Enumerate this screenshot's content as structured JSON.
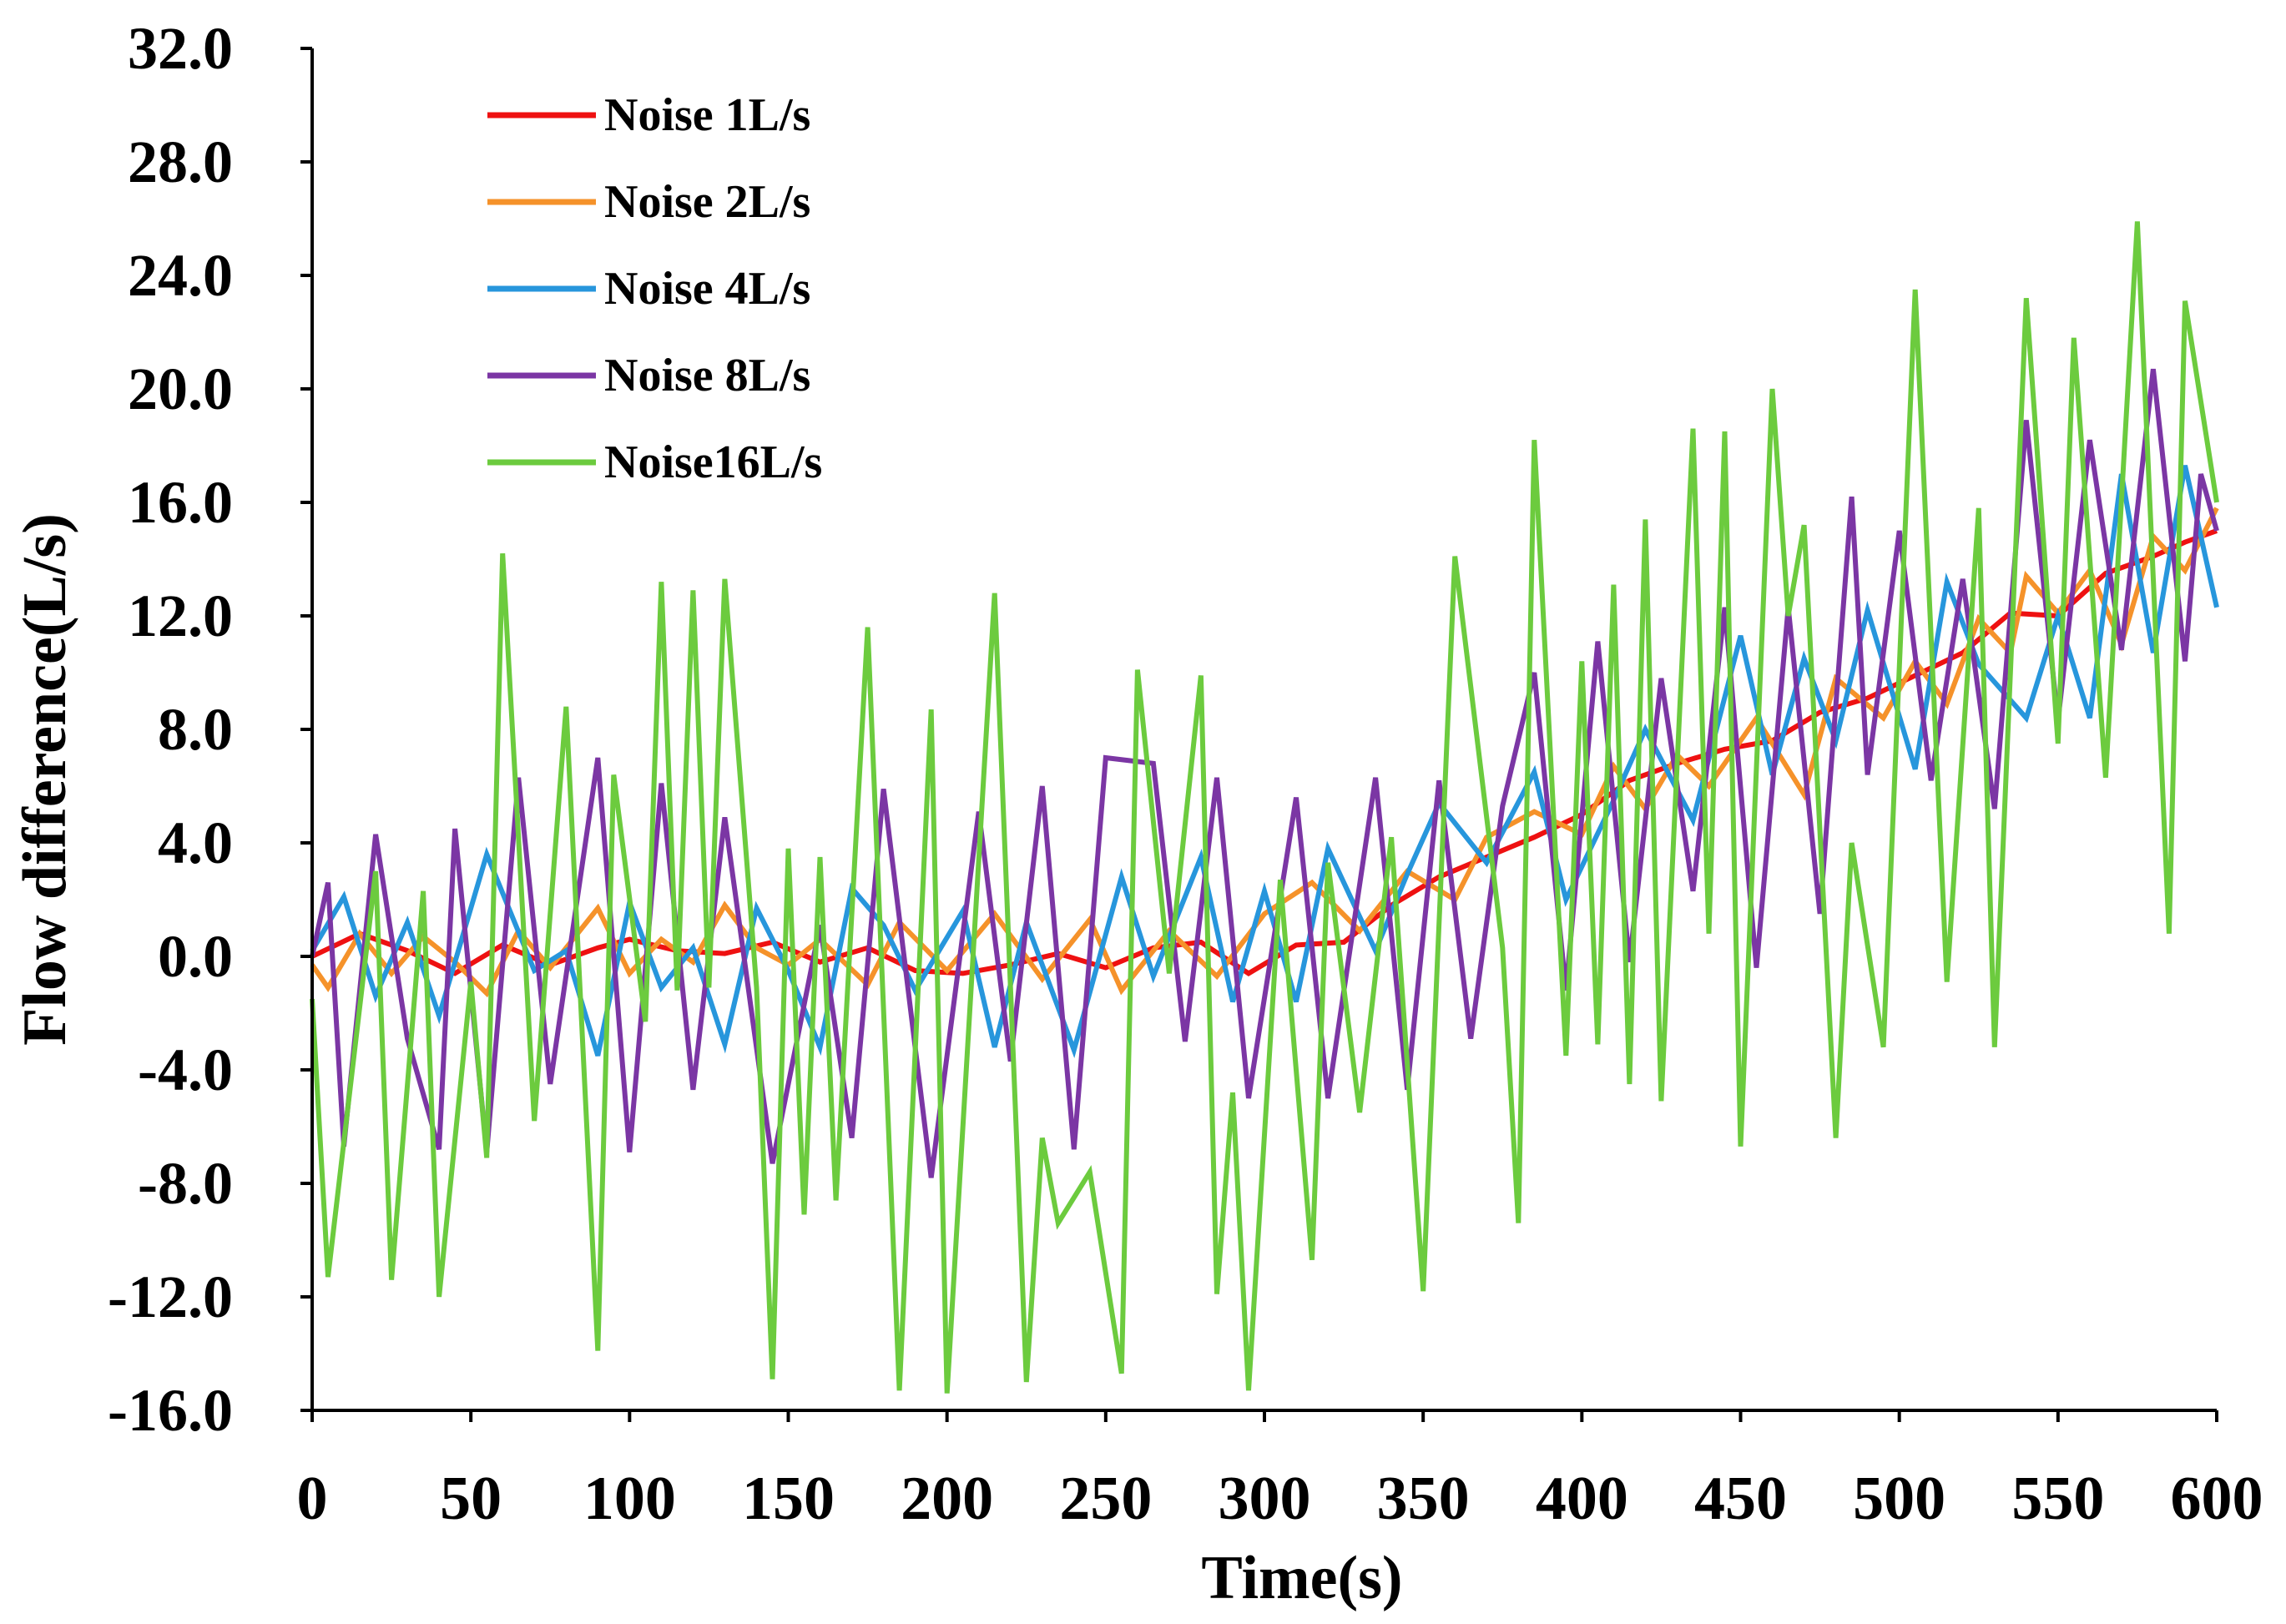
{
  "chart_data": {
    "type": "line",
    "title": "",
    "xlabel": "Time(s)",
    "ylabel": "Flow difference(L/s)",
    "xlim": [
      0,
      600
    ],
    "ylim": [
      -16,
      32
    ],
    "xticks": [
      0,
      50,
      100,
      150,
      200,
      250,
      300,
      350,
      400,
      450,
      500,
      550,
      600
    ],
    "xtick_labels": [
      "0",
      "50",
      "100",
      "150",
      "200",
      "250",
      "300",
      "350",
      "400",
      "450",
      "500",
      "550",
      "600"
    ],
    "yticks": [
      -16,
      -12,
      -8,
      -4,
      0,
      4,
      8,
      12,
      16,
      20,
      24,
      28,
      32
    ],
    "ytick_labels": [
      "-16.0",
      "-12.0",
      "-8.0",
      "-4.0",
      "0.0",
      "4.0",
      "8.0",
      "12.0",
      "16.0",
      "20.0",
      "24.0",
      "28.0",
      "32.0"
    ],
    "grid": false,
    "legend_position": "top-left",
    "series": [
      {
        "name": "Noise 1L/s",
        "color": "#ee1111",
        "points": [
          [
            0,
            0.0
          ],
          [
            15,
            0.8
          ],
          [
            30,
            0.2
          ],
          [
            45,
            -0.6
          ],
          [
            60,
            0.4
          ],
          [
            75,
            -0.3
          ],
          [
            90,
            0.3
          ],
          [
            100,
            0.6
          ],
          [
            115,
            0.2
          ],
          [
            130,
            0.1
          ],
          [
            145,
            0.5
          ],
          [
            160,
            -0.2
          ],
          [
            175,
            0.3
          ],
          [
            190,
            -0.5
          ],
          [
            205,
            -0.6
          ],
          [
            220,
            -0.3
          ],
          [
            235,
            0.1
          ],
          [
            250,
            -0.4
          ],
          [
            265,
            0.3
          ],
          [
            280,
            0.5
          ],
          [
            295,
            -0.6
          ],
          [
            310,
            0.4
          ],
          [
            325,
            0.5
          ],
          [
            340,
            1.8
          ],
          [
            355,
            2.8
          ],
          [
            370,
            3.5
          ],
          [
            385,
            4.2
          ],
          [
            400,
            5.0
          ],
          [
            415,
            6.2
          ],
          [
            430,
            6.8
          ],
          [
            445,
            7.3
          ],
          [
            460,
            7.6
          ],
          [
            475,
            8.6
          ],
          [
            490,
            9.1
          ],
          [
            505,
            9.9
          ],
          [
            520,
            10.7
          ],
          [
            535,
            12.1
          ],
          [
            550,
            12.0
          ],
          [
            565,
            13.5
          ],
          [
            580,
            14.1
          ],
          [
            590,
            14.6
          ],
          [
            600,
            15.0
          ]
        ]
      },
      {
        "name": "Noise 2L/s",
        "color": "#f5922a",
        "points": [
          [
            0,
            -0.3
          ],
          [
            5,
            -1.1
          ],
          [
            15,
            0.8
          ],
          [
            25,
            -0.6
          ],
          [
            35,
            0.7
          ],
          [
            45,
            -0.2
          ],
          [
            55,
            -1.3
          ],
          [
            65,
            0.9
          ],
          [
            75,
            -0.4
          ],
          [
            90,
            1.7
          ],
          [
            100,
            -0.6
          ],
          [
            110,
            0.6
          ],
          [
            120,
            -0.2
          ],
          [
            130,
            1.8
          ],
          [
            140,
            0.3
          ],
          [
            150,
            -0.3
          ],
          [
            160,
            0.6
          ],
          [
            175,
            -1.0
          ],
          [
            185,
            1.2
          ],
          [
            200,
            -0.5
          ],
          [
            215,
            1.5
          ],
          [
            230,
            -0.8
          ],
          [
            245,
            1.3
          ],
          [
            255,
            -1.2
          ],
          [
            270,
            0.9
          ],
          [
            285,
            -0.7
          ],
          [
            300,
            1.5
          ],
          [
            315,
            2.6
          ],
          [
            330,
            0.9
          ],
          [
            345,
            3.0
          ],
          [
            360,
            2.0
          ],
          [
            370,
            4.2
          ],
          [
            385,
            5.1
          ],
          [
            400,
            4.3
          ],
          [
            410,
            6.7
          ],
          [
            420,
            5.2
          ],
          [
            430,
            7.1
          ],
          [
            440,
            6.0
          ],
          [
            455,
            8.4
          ],
          [
            470,
            5.7
          ],
          [
            480,
            9.8
          ],
          [
            495,
            8.4
          ],
          [
            505,
            10.4
          ],
          [
            515,
            8.9
          ],
          [
            525,
            11.9
          ],
          [
            535,
            10.7
          ],
          [
            540,
            13.4
          ],
          [
            550,
            12.1
          ],
          [
            560,
            13.6
          ],
          [
            570,
            11.0
          ],
          [
            580,
            14.8
          ],
          [
            590,
            13.6
          ],
          [
            600,
            15.8
          ]
        ]
      },
      {
        "name": "Noise 4L/s",
        "color": "#2796dc",
        "points": [
          [
            0,
            0.2
          ],
          [
            10,
            2.1
          ],
          [
            20,
            -1.4
          ],
          [
            30,
            1.2
          ],
          [
            40,
            -2.1
          ],
          [
            55,
            3.6
          ],
          [
            70,
            -0.5
          ],
          [
            80,
            0.2
          ],
          [
            90,
            -3.5
          ],
          [
            100,
            1.9
          ],
          [
            110,
            -1.1
          ],
          [
            120,
            0.3
          ],
          [
            130,
            -3.1
          ],
          [
            140,
            1.7
          ],
          [
            150,
            -0.5
          ],
          [
            160,
            -3.2
          ],
          [
            170,
            2.4
          ],
          [
            180,
            1.1
          ],
          [
            190,
            -1.2
          ],
          [
            205,
            1.6
          ],
          [
            215,
            -3.2
          ],
          [
            225,
            1.2
          ],
          [
            240,
            -3.3
          ],
          [
            255,
            2.8
          ],
          [
            265,
            -0.7
          ],
          [
            280,
            3.5
          ],
          [
            290,
            -1.6
          ],
          [
            300,
            2.3
          ],
          [
            310,
            -1.6
          ],
          [
            320,
            3.8
          ],
          [
            335,
            0.2
          ],
          [
            345,
            2.9
          ],
          [
            355,
            5.4
          ],
          [
            370,
            3.3
          ],
          [
            385,
            6.5
          ],
          [
            395,
            2.0
          ],
          [
            410,
            5.5
          ],
          [
            420,
            8.0
          ],
          [
            435,
            4.8
          ],
          [
            450,
            11.3
          ],
          [
            460,
            6.4
          ],
          [
            470,
            10.5
          ],
          [
            480,
            7.6
          ],
          [
            490,
            12.2
          ],
          [
            505,
            6.6
          ],
          [
            515,
            13.2
          ],
          [
            525,
            10.3
          ],
          [
            540,
            8.4
          ],
          [
            550,
            12.0
          ],
          [
            560,
            8.4
          ],
          [
            570,
            17.0
          ],
          [
            580,
            10.7
          ],
          [
            590,
            17.3
          ],
          [
            600,
            12.3
          ]
        ]
      },
      {
        "name": "Noise 8L/s",
        "color": "#7b36a4",
        "points": [
          [
            0,
            0.0
          ],
          [
            5,
            2.6
          ],
          [
            10,
            -6.7
          ],
          [
            20,
            4.3
          ],
          [
            30,
            -2.9
          ],
          [
            40,
            -6.8
          ],
          [
            45,
            4.5
          ],
          [
            55,
            -6.9
          ],
          [
            65,
            6.3
          ],
          [
            75,
            -4.5
          ],
          [
            90,
            7.0
          ],
          [
            100,
            -6.9
          ],
          [
            110,
            6.1
          ],
          [
            120,
            -4.7
          ],
          [
            130,
            4.9
          ],
          [
            145,
            -7.3
          ],
          [
            160,
            1.1
          ],
          [
            170,
            -6.4
          ],
          [
            180,
            5.9
          ],
          [
            195,
            -7.8
          ],
          [
            210,
            5.1
          ],
          [
            220,
            -3.7
          ],
          [
            230,
            6.0
          ],
          [
            240,
            -6.8
          ],
          [
            250,
            7.0
          ],
          [
            265,
            6.8
          ],
          [
            275,
            -3.0
          ],
          [
            285,
            6.3
          ],
          [
            295,
            -5.0
          ],
          [
            310,
            5.6
          ],
          [
            320,
            -5.0
          ],
          [
            335,
            6.3
          ],
          [
            345,
            -4.7
          ],
          [
            355,
            6.2
          ],
          [
            365,
            -2.9
          ],
          [
            375,
            5.3
          ],
          [
            385,
            10.0
          ],
          [
            395,
            -1.2
          ],
          [
            405,
            11.1
          ],
          [
            415,
            -0.2
          ],
          [
            425,
            9.8
          ],
          [
            435,
            2.3
          ],
          [
            445,
            12.3
          ],
          [
            455,
            -0.4
          ],
          [
            465,
            12.3
          ],
          [
            475,
            1.5
          ],
          [
            485,
            16.2
          ],
          [
            490,
            6.4
          ],
          [
            500,
            15.0
          ],
          [
            510,
            6.2
          ],
          [
            520,
            13.3
          ],
          [
            530,
            5.2
          ],
          [
            540,
            18.9
          ],
          [
            550,
            8.3
          ],
          [
            560,
            18.2
          ],
          [
            570,
            10.8
          ],
          [
            580,
            20.7
          ],
          [
            590,
            10.4
          ],
          [
            595,
            17.0
          ],
          [
            600,
            15.0
          ]
        ]
      },
      {
        "name": "Noise16L/s",
        "color": "#6ccb3e",
        "points": [
          [
            0,
            -1.5
          ],
          [
            5,
            -11.3
          ],
          [
            20,
            3.0
          ],
          [
            25,
            -11.4
          ],
          [
            35,
            2.3
          ],
          [
            40,
            -12.0
          ],
          [
            50,
            -0.9
          ],
          [
            55,
            -7.1
          ],
          [
            60,
            14.2
          ],
          [
            70,
            -5.8
          ],
          [
            80,
            8.8
          ],
          [
            90,
            -13.9
          ],
          [
            95,
            6.4
          ],
          [
            105,
            -2.3
          ],
          [
            110,
            13.2
          ],
          [
            115,
            -1.2
          ],
          [
            120,
            12.9
          ],
          [
            125,
            -1.1
          ],
          [
            130,
            13.3
          ],
          [
            140,
            -1.1
          ],
          [
            145,
            -14.9
          ],
          [
            150,
            3.8
          ],
          [
            155,
            -9.1
          ],
          [
            160,
            3.5
          ],
          [
            165,
            -8.6
          ],
          [
            175,
            11.6
          ],
          [
            185,
            -15.3
          ],
          [
            195,
            8.7
          ],
          [
            200,
            -15.4
          ],
          [
            215,
            12.8
          ],
          [
            225,
            -15.0
          ],
          [
            230,
            -6.4
          ],
          [
            235,
            -9.4
          ],
          [
            245,
            -7.6
          ],
          [
            255,
            -14.7
          ],
          [
            260,
            10.1
          ],
          [
            270,
            -0.6
          ],
          [
            280,
            9.9
          ],
          [
            285,
            -11.9
          ],
          [
            290,
            -4.8
          ],
          [
            295,
            -15.3
          ],
          [
            305,
            2.7
          ],
          [
            315,
            -10.7
          ],
          [
            320,
            3.3
          ],
          [
            330,
            -5.5
          ],
          [
            340,
            4.2
          ],
          [
            350,
            -11.8
          ],
          [
            360,
            14.1
          ],
          [
            375,
            0.3
          ],
          [
            380,
            -9.4
          ],
          [
            385,
            18.2
          ],
          [
            395,
            -3.5
          ],
          [
            400,
            10.4
          ],
          [
            405,
            -3.1
          ],
          [
            410,
            13.1
          ],
          [
            415,
            -4.5
          ],
          [
            420,
            15.4
          ],
          [
            425,
            -5.1
          ],
          [
            435,
            18.6
          ],
          [
            440,
            0.8
          ],
          [
            445,
            18.5
          ],
          [
            450,
            -6.7
          ],
          [
            460,
            20.0
          ],
          [
            465,
            12.0
          ],
          [
            470,
            15.2
          ],
          [
            480,
            -6.4
          ],
          [
            485,
            4.0
          ],
          [
            495,
            -3.2
          ],
          [
            505,
            23.5
          ],
          [
            515,
            -0.9
          ],
          [
            525,
            15.8
          ],
          [
            530,
            -3.2
          ],
          [
            540,
            23.2
          ],
          [
            550,
            7.5
          ],
          [
            555,
            21.8
          ],
          [
            565,
            6.3
          ],
          [
            575,
            25.9
          ],
          [
            585,
            0.8
          ],
          [
            590,
            23.1
          ],
          [
            600,
            16.0
          ]
        ]
      }
    ]
  }
}
